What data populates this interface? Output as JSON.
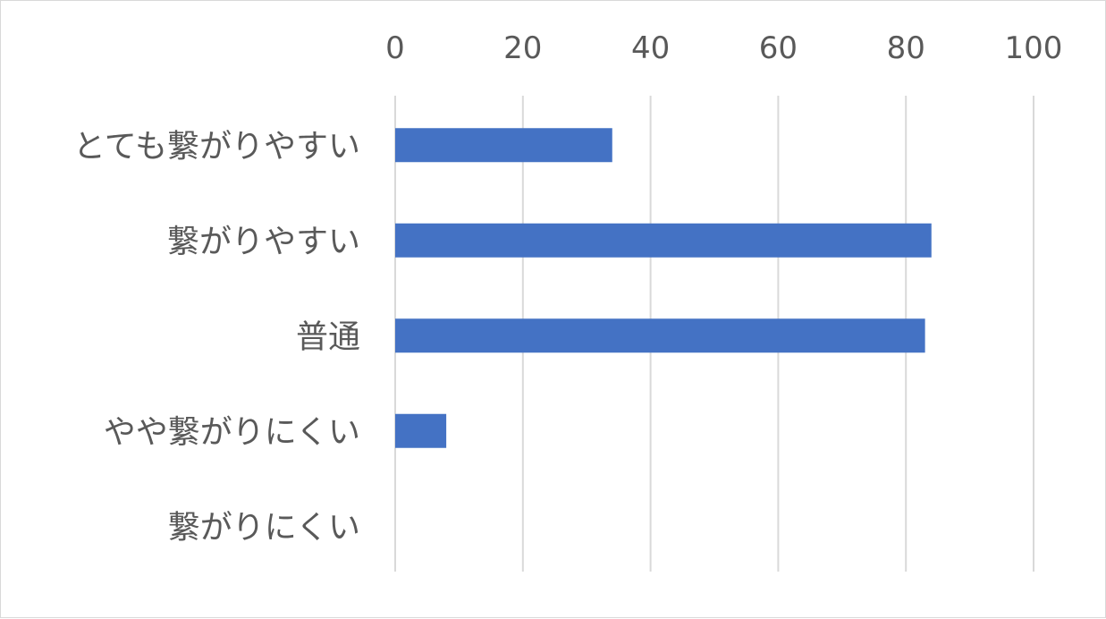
{
  "chart_data": {
    "type": "bar",
    "orientation": "horizontal",
    "categories": [
      "とても繋がりやすい",
      "繋がりやすい",
      "普通",
      "やや繋がりにくい",
      "繋がりにくい"
    ],
    "values": [
      34,
      84,
      83,
      8,
      0
    ],
    "xlim": [
      0,
      100
    ],
    "xticks": [
      0,
      20,
      40,
      60,
      80,
      100
    ],
    "x_axis_position": "top",
    "grid": "vertical",
    "title": "",
    "xlabel": "",
    "ylabel": "",
    "bar_color": "#4472c4",
    "gridline_color": "#d9d9d9",
    "text_color": "#595959"
  }
}
